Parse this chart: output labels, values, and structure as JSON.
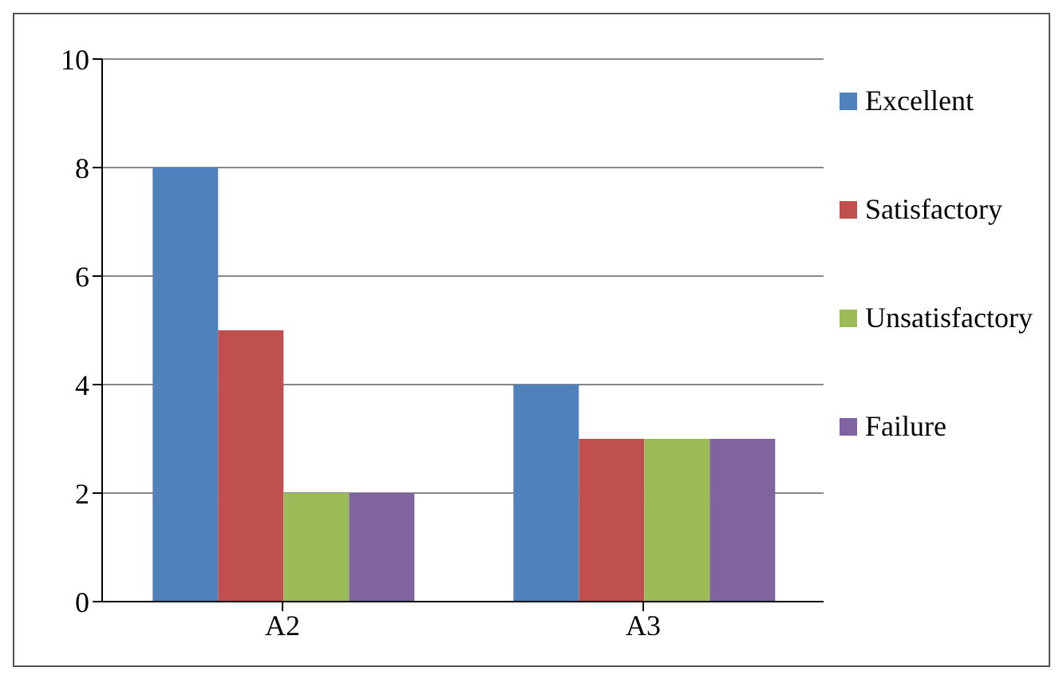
{
  "chart_data": {
    "type": "bar",
    "categories": [
      "A2",
      "A3"
    ],
    "series": [
      {
        "name": "Excellent",
        "color": "#4f81bd",
        "values": [
          8,
          4
        ]
      },
      {
        "name": "Satisfactory",
        "color": "#c0504d",
        "values": [
          5,
          3
        ]
      },
      {
        "name": "Unsatisfactory",
        "color": "#9bbb59",
        "values": [
          2,
          3
        ]
      },
      {
        "name": "Failure",
        "color": "#8064a2",
        "values": [
          2,
          3
        ]
      }
    ],
    "ylim": [
      0,
      10
    ],
    "yticks": [
      0,
      2,
      4,
      6,
      8,
      10
    ],
    "grid": "y",
    "legend": "right"
  }
}
